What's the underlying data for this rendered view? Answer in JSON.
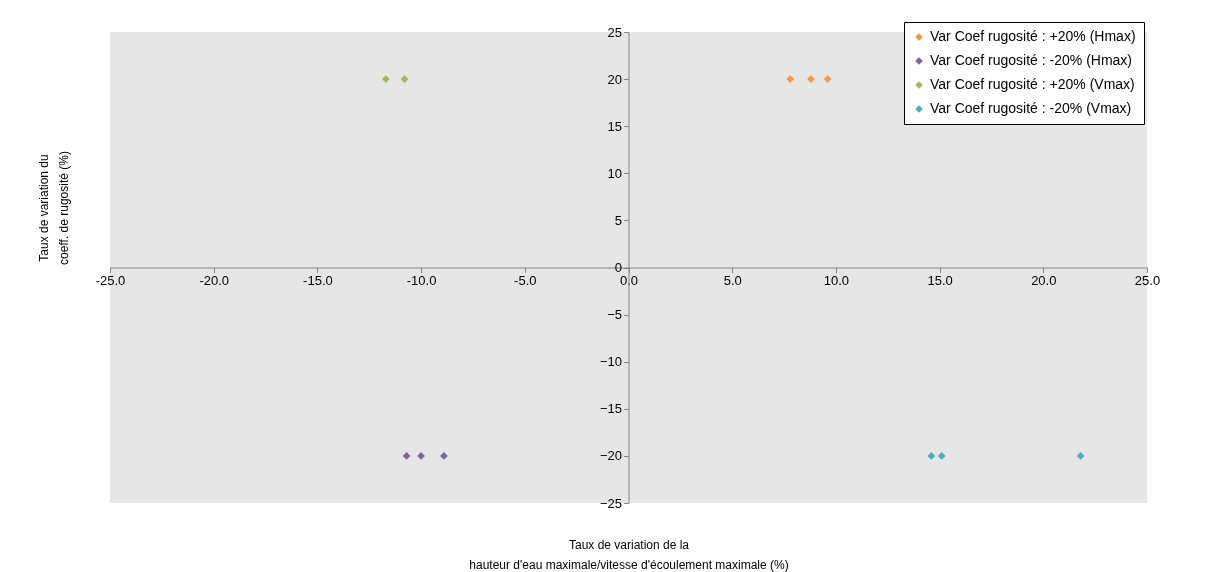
{
  "chart_data": {
    "type": "scatter",
    "xlabel": "Taux de variation de la\nhauteur d'eau maximale/vitesse d'écoulement maximale (%)",
    "ylabel": "Taux de variation du\ncoeff. de rugosité (%)",
    "xlim": [
      -25,
      25
    ],
    "ylim": [
      -25,
      25
    ],
    "xticks": [
      {
        "value": -25,
        "label": "-25.0"
      },
      {
        "value": -20,
        "label": "-20.0"
      },
      {
        "value": -15,
        "label": "-15.0"
      },
      {
        "value": -10,
        "label": "-10.0"
      },
      {
        "value": -5,
        "label": "-5.0"
      },
      {
        "value": 0,
        "label": "0.0"
      },
      {
        "value": 5,
        "label": "5.0"
      },
      {
        "value": 10,
        "label": "10.0"
      },
      {
        "value": 15,
        "label": "15.0"
      },
      {
        "value": 20,
        "label": "20.0"
      },
      {
        "value": 25,
        "label": "25.0"
      }
    ],
    "yticks": [
      -25,
      -20,
      -15,
      -10,
      -5,
      0,
      5,
      10,
      15,
      20,
      25
    ],
    "marker": "diamond",
    "legend": "top right",
    "grid": false,
    "series": [
      {
        "name": "Var Coef rugosité : +20% (Hmax)",
        "color": "#f79646",
        "x": [
          7.8,
          8.8,
          9.6
        ],
        "values": [
          20,
          20,
          20
        ]
      },
      {
        "name": "Var Coef rugosité : -20% (Hmax)",
        "color": "#8064a2",
        "x": [
          -10.7,
          -10.0,
          -8.9
        ],
        "values": [
          -20,
          -20,
          -20
        ]
      },
      {
        "name": "Var Coef rugosité : +20% (Vmax)",
        "color": "#9bbb59",
        "x": [
          -11.7,
          -10.8
        ],
        "values": [
          20,
          20
        ]
      },
      {
        "name": "Var Coef rugosité : -20% (Vmax)",
        "color": "#4bacc6",
        "x": [
          14.6,
          15.1,
          21.8
        ],
        "values": [
          -20,
          -20,
          -20
        ]
      }
    ]
  }
}
